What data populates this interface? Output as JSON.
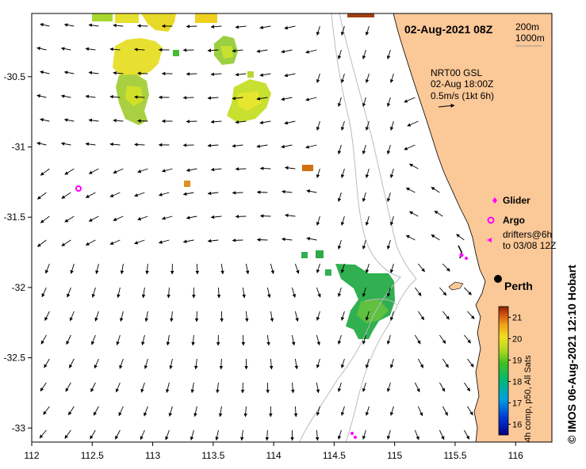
{
  "map": {
    "title": "02-Aug-2021 08Z",
    "depth_contours": [
      "200m",
      "1000m"
    ],
    "current_source": "NRT00 GSL",
    "current_time": "02-Aug 18:00Z",
    "current_scale": "0.5m/s (1kt 6h)",
    "city": "Perth",
    "colorbar_caption": "4h comp, p50, All Sats",
    "credit": "© IMOS 06-Aug-2021 12:10 Hobart",
    "colors": {
      "land": "#fbc898",
      "ocean": "#ffffff",
      "contour": "#bbbbbb",
      "marker": "#ff00ff"
    }
  },
  "legend": {
    "glider": "Glider",
    "argo": "Argo",
    "drifters_line1": "drifters@6h",
    "drifters_line2": "to 03/08 12Z"
  },
  "colorbar": {
    "min": 15.5,
    "max": 21.5,
    "ticks": [
      "16",
      "17",
      "18",
      "19",
      "20",
      "21"
    ]
  },
  "axes": {
    "x_ticks": [
      "112",
      "112.5",
      "113",
      "113.5",
      "114",
      "114.5",
      "115",
      "115.5",
      "116"
    ],
    "y_ticks": [
      "-30.5",
      "-31",
      "-31.5",
      "-32",
      "-32.5",
      "-33"
    ],
    "xlim": [
      112,
      116.3
    ],
    "ylim": [
      -33.1,
      -30.05
    ]
  }
}
